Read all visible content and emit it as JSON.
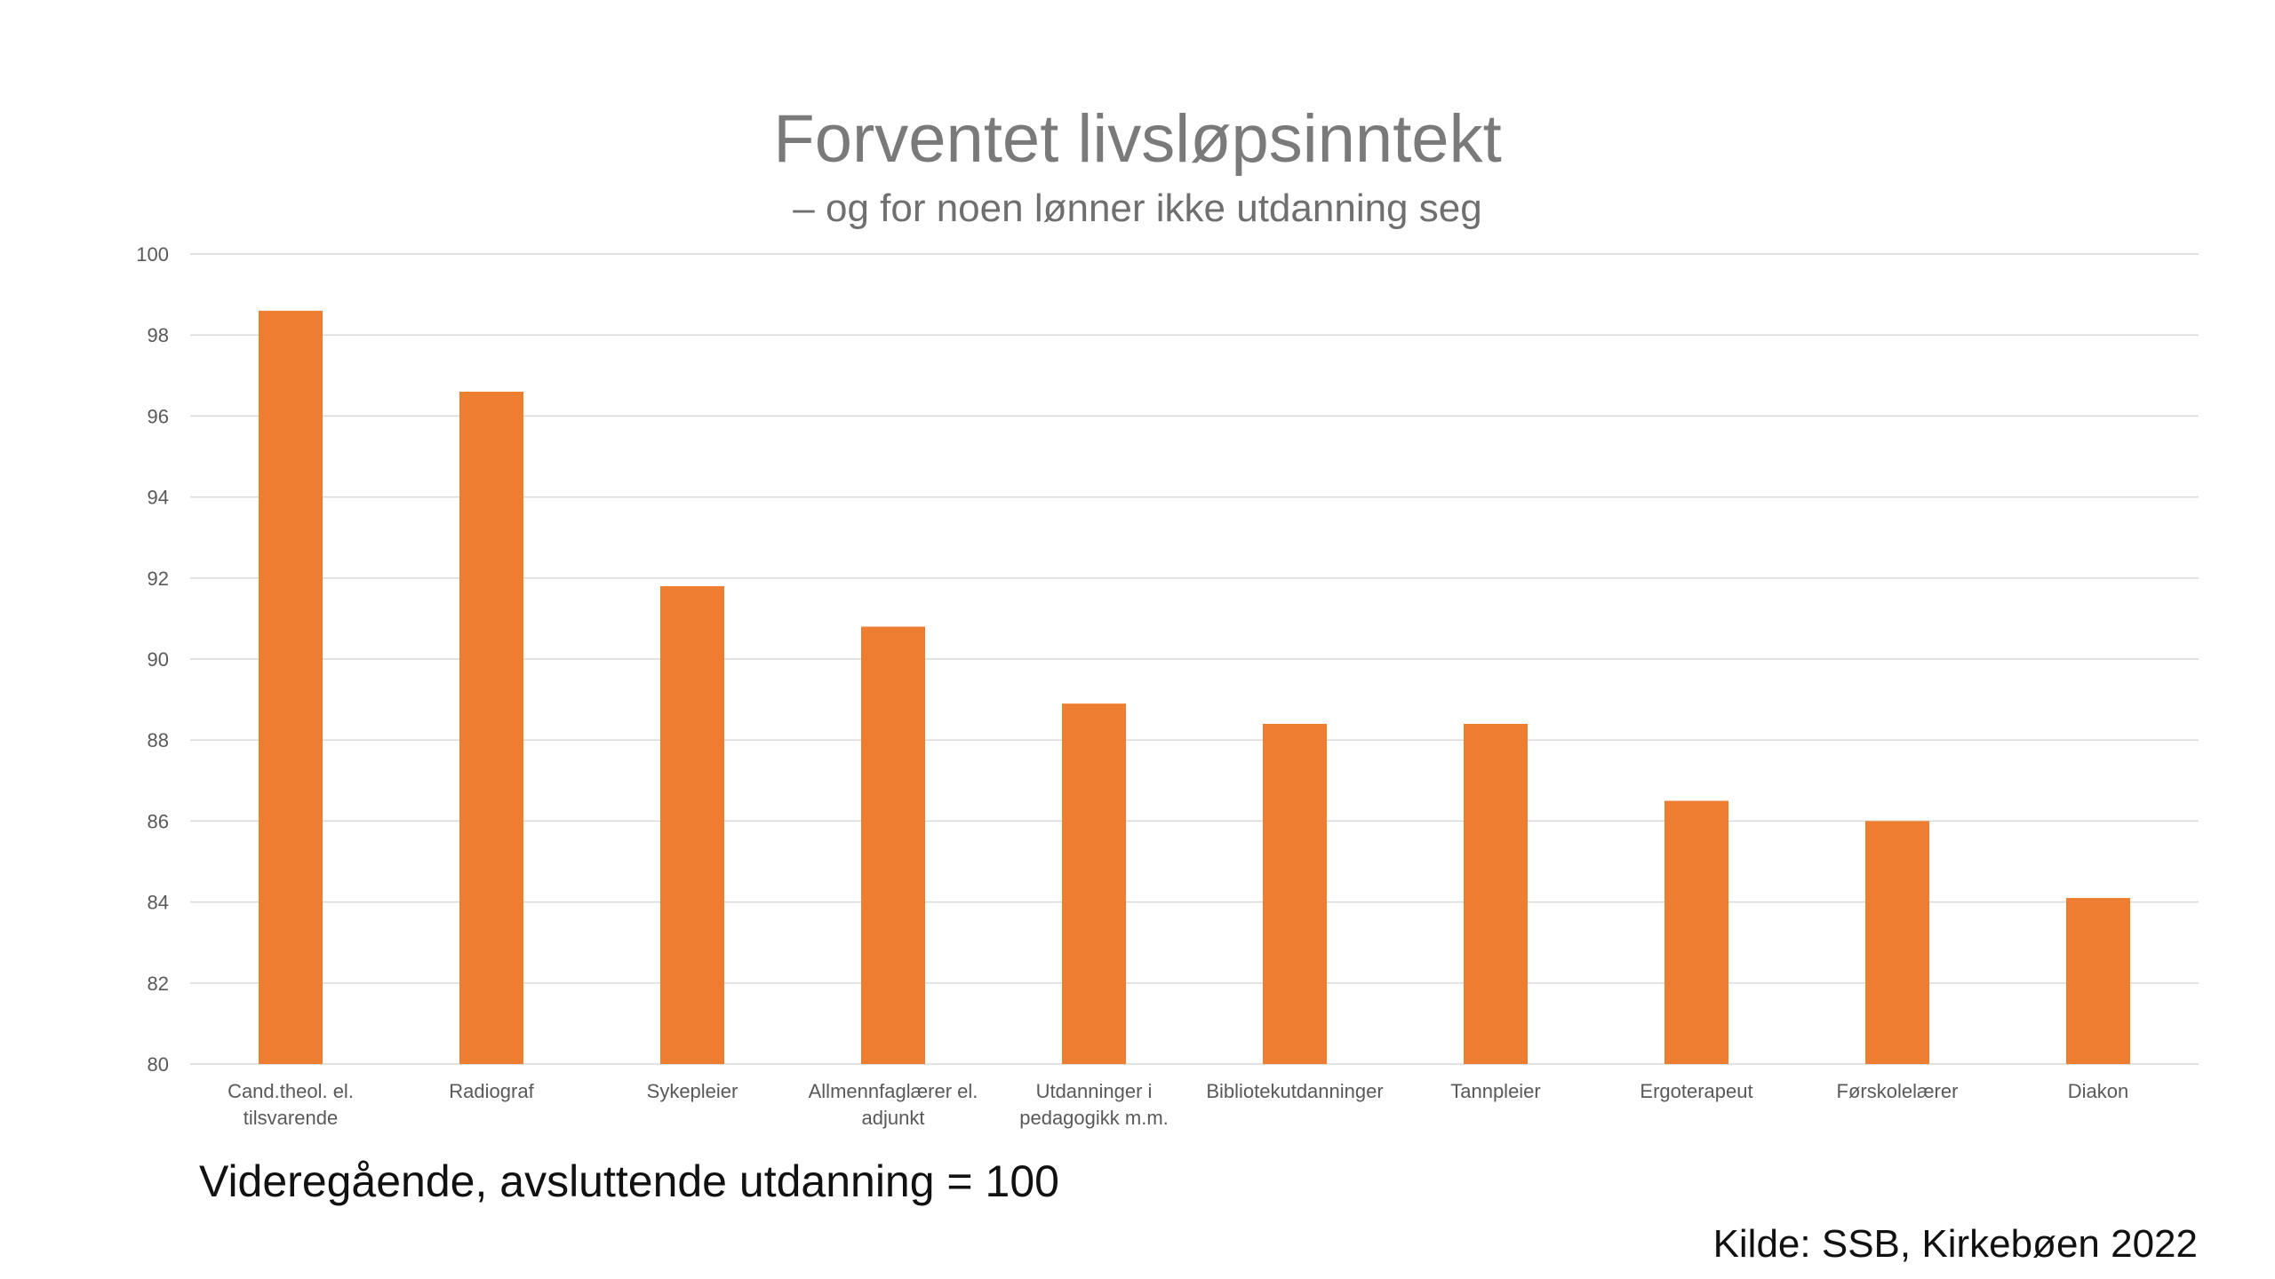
{
  "chart_data": {
    "type": "bar",
    "title": "Forventet livsløpsinntekt",
    "subtitle": "– og for noen lønner ikke utdanning seg",
    "categories": [
      [
        "Cand.theol. el.",
        "tilsvarende"
      ],
      [
        "Radiograf"
      ],
      [
        "Sykepleier"
      ],
      [
        "Allmennfaglærer el.",
        "adjunkt"
      ],
      [
        "Utdanninger i",
        "pedagogikk m.m."
      ],
      [
        "Bibliotekutdanninger"
      ],
      [
        "Tannpleier"
      ],
      [
        "Ergoterapeut"
      ],
      [
        "Førskolelærer"
      ],
      [
        "Diakon"
      ]
    ],
    "values": [
      98.6,
      96.6,
      91.8,
      90.8,
      88.9,
      88.4,
      88.4,
      86.5,
      86.0,
      84.1
    ],
    "ylim": [
      80,
      100
    ],
    "yticks": [
      80,
      82,
      84,
      86,
      88,
      90,
      92,
      94,
      96,
      98,
      100
    ],
    "xlabel": "",
    "ylabel": "",
    "grid": true,
    "legend": "none",
    "bar_color": "#ED7D31",
    "note": "Videregående, avsluttende utdanning = 100",
    "source": "Kilde: SSB, Kirkebøen 2022"
  }
}
